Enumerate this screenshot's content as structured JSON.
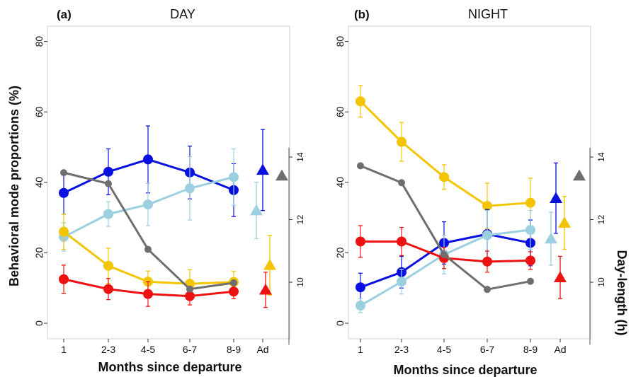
{
  "chart_data": {
    "type": "line",
    "ylabel": "Behavioral mode proportions (%)",
    "y2label": "Day-length (h)",
    "xlabel": "Months since departure",
    "categories": [
      "1",
      "2-3",
      "4-5",
      "6-7",
      "8-9",
      "Ad"
    ],
    "ylim": [
      0,
      80
    ],
    "yticks": [
      0,
      20,
      40,
      60,
      80
    ],
    "y2lim": [
      8.0,
      14.3
    ],
    "y2ticks": [
      10,
      12,
      14
    ],
    "panels": [
      {
        "letter": "(a)",
        "title": "DAY",
        "series": [
          {
            "color": "#0a10e0",
            "values": [
              37,
              43,
              46.5,
              42.8,
              37.8
            ],
            "err": [
              6,
              6.5,
              9.5,
              7.5,
              7.5
            ],
            "adult": {
              "value": 43.5,
              "err": 11.5
            }
          },
          {
            "color": "#9ccfe0",
            "values": [
              24.5,
              31,
              33.7,
              38.3,
              41.5
            ],
            "err": [
              4,
              3.5,
              6,
              9,
              8
            ],
            "adult": {
              "value": 32,
              "err": 8
            }
          },
          {
            "color": "#f2c500",
            "values": [
              26,
              16.3,
              11.8,
              11.2,
              11.7
            ],
            "err": [
              5,
              5,
              3,
              4,
              3
            ],
            "adult": {
              "value": 16.5,
              "err": 8.5
            }
          },
          {
            "color": "#ee1111",
            "values": [
              12.5,
              9.7,
              8.3,
              7.7,
              9
            ],
            "err": [
              4,
              3,
              3.5,
              2.5,
              2
            ],
            "adult": {
              "value": 9.5,
              "err": 5
            }
          },
          {
            "color": "#6e6e6e",
            "y2": true,
            "values": [
              13.5,
              13.15,
              11.05,
              9.78,
              9.98
            ],
            "err": [
              0,
              0,
              0,
              0,
              0
            ],
            "adult": {
              "value": 13.4,
              "err": 0
            }
          }
        ]
      },
      {
        "letter": "(b)",
        "title": "NIGHT",
        "series": [
          {
            "color": "#f2c500",
            "values": [
              63,
              51.5,
              41.5,
              33.3,
              34.2
            ],
            "err": [
              4.5,
              5.5,
              3.5,
              6.5,
              7
            ],
            "adult": {
              "value": 28.5,
              "err": 7.5
            }
          },
          {
            "color": "#0a10e0",
            "values": [
              10.2,
              14.5,
              22.8,
              25.3,
              22.8
            ],
            "err": [
              4,
              4.5,
              6,
              7,
              6.5
            ],
            "adult": {
              "value": 35.5,
              "err": 10
            }
          },
          {
            "color": "#9ccfe0",
            "values": [
              5,
              11.8,
              19.5,
              25,
              26.5
            ],
            "err": [
              2,
              3.5,
              5.5,
              7,
              5.5
            ],
            "adult": {
              "value": 24,
              "err": 7.5
            }
          },
          {
            "color": "#ee1111",
            "values": [
              23.2,
              23.2,
              18.5,
              17.5,
              17.8
            ],
            "err": [
              4.5,
              4,
              3,
              3,
              2.5
            ],
            "adult": {
              "value": 13,
              "err": 6
            }
          },
          {
            "color": "#6e6e6e",
            "y2": true,
            "values": [
              13.72,
              13.18,
              10.88,
              9.77,
              10.03
            ],
            "err": [
              0,
              0,
              0,
              0,
              0
            ],
            "adult": {
              "value": 13.4,
              "err": 0
            }
          }
        ]
      }
    ]
  }
}
